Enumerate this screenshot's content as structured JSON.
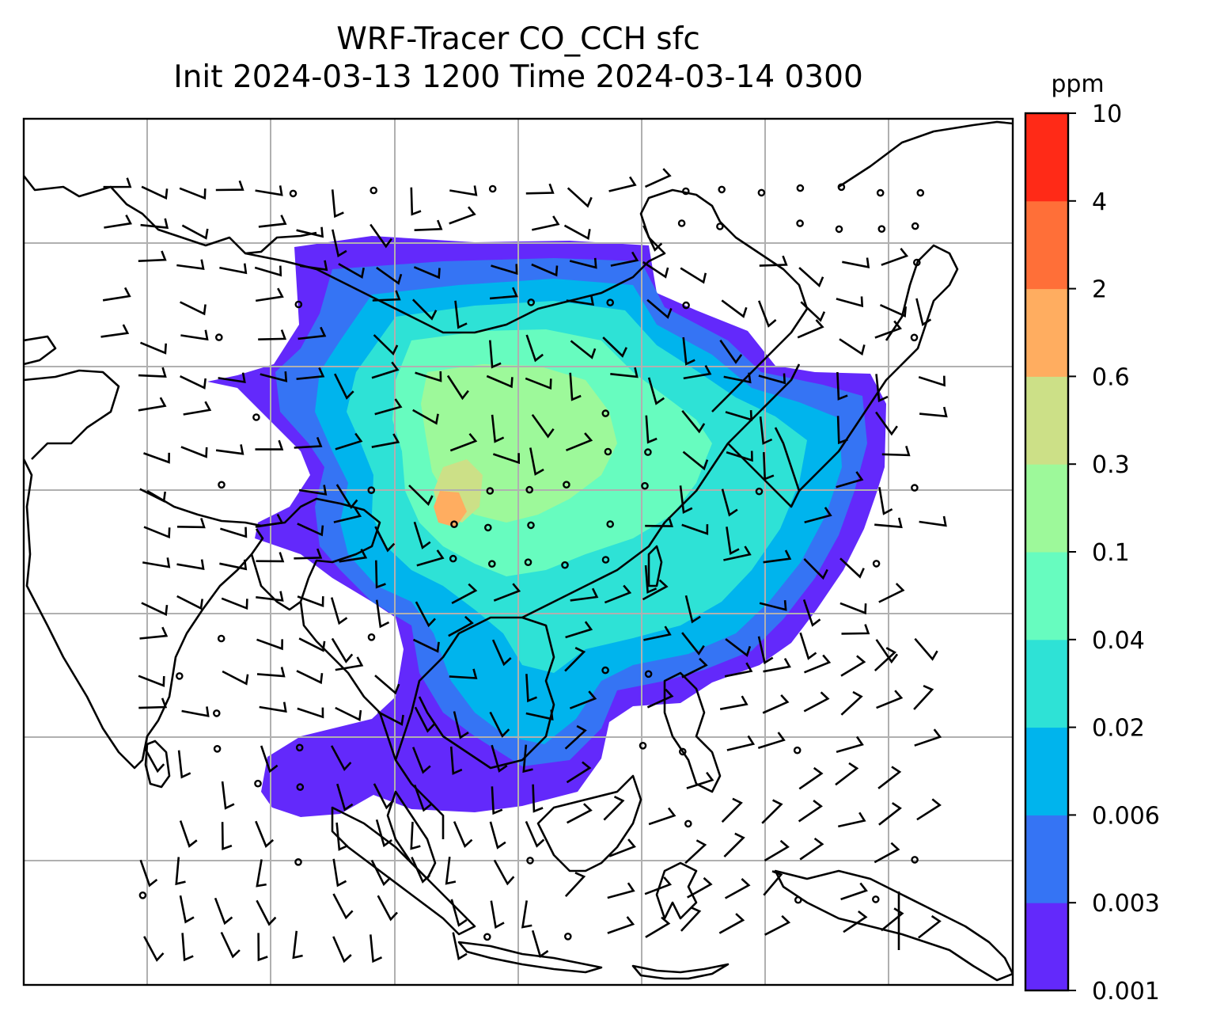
{
  "title": {
    "line1": "WRF-Tracer CO_CCH sfc",
    "line2": "Init 2024-03-13 1200 Time 2024-03-14 0300"
  },
  "colorbar": {
    "unit": "ppm",
    "levels": [
      "0.001",
      "0.003",
      "0.006",
      "0.02",
      "0.04",
      "0.1",
      "0.3",
      "0.6",
      "2",
      "4",
      "10"
    ],
    "colors": [
      "#6329fb",
      "#3574f4",
      "#00b4ed",
      "#2ee2d6",
      "#67fcbf",
      "#9df99a",
      "#cce087",
      "#ffad60",
      "#ff6f38",
      "#ff2a17"
    ]
  },
  "map": {
    "background": "#ffffff",
    "gridline_color": "#b0b0b0",
    "coastline_color": "#000000",
    "field_name": "CO_CCH",
    "overlay": "wind-barbs"
  }
}
